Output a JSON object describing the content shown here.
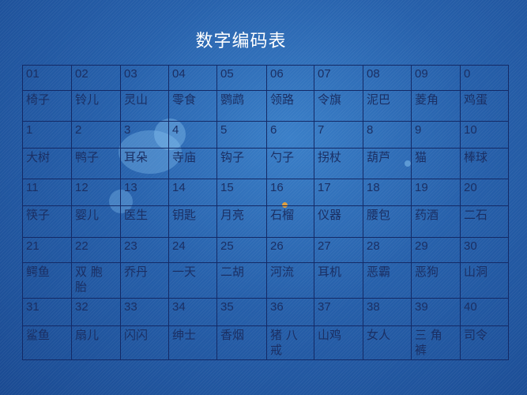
{
  "title": "数字编码表",
  "rows": [
    {
      "numbers": [
        "01",
        "02",
        "03",
        "04",
        "05",
        "06",
        "07",
        "08",
        "09",
        "0"
      ],
      "words": [
        "椅子",
        "铃儿",
        "灵山",
        "零食",
        "鹦鹉",
        "领路",
        "令旗",
        "泥巴",
        "菱角",
        "鸡蛋"
      ]
    },
    {
      "numbers": [
        "1",
        "2",
        "3",
        "4",
        "5",
        "6",
        "7",
        "8",
        "9",
        "10"
      ],
      "words": [
        "大树",
        "鸭子",
        "耳朵",
        "寺庙",
        "钩子",
        "勺子",
        "拐杖",
        "葫芦",
        "猫",
        "棒球"
      ]
    },
    {
      "numbers": [
        "11",
        "12",
        "13",
        "14",
        "15",
        "16",
        "17",
        "18",
        "19",
        "20"
      ],
      "words": [
        "筷子",
        "婴儿",
        "医生",
        "钥匙",
        "月亮",
        "石榴",
        "仪器",
        "腰包",
        "药酒",
        "二石"
      ]
    },
    {
      "numbers": [
        "21",
        "22",
        "23",
        "24",
        "25",
        "26",
        "27",
        "28",
        "29",
        "30"
      ],
      "words": [
        "鳄鱼",
        "双 胞 胎",
        "乔丹",
        "一天",
        "二胡",
        "河流",
        "耳机",
        "恶霸",
        "恶狗",
        "山洞"
      ]
    },
    {
      "numbers": [
        "31",
        "32",
        "33",
        "34",
        "35",
        "36",
        "37",
        "38",
        "39",
        "40"
      ],
      "words": [
        "鲨鱼",
        "扇儿",
        "闪闪",
        "绅士",
        "香烟",
        "猪 八 戒",
        "山鸡",
        "女人",
        "三 角 裤",
        "司令"
      ]
    }
  ]
}
